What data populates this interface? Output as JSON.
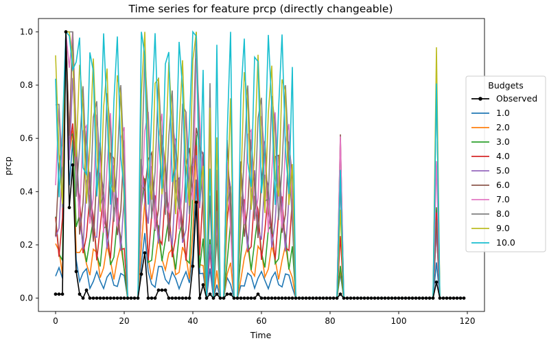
{
  "chart_data": {
    "type": "line",
    "title": "Time series for feature prcp (directly changeable)",
    "xlabel": "Time",
    "ylabel": "prcp",
    "xlim": [
      -5,
      125
    ],
    "ylim": [
      -0.05,
      1.05
    ],
    "x_ticks": [
      0,
      20,
      40,
      60,
      80,
      100,
      120
    ],
    "y_ticks": [
      0.0,
      0.2,
      0.4,
      0.6,
      0.8,
      1.0
    ],
    "grid": false,
    "legend": {
      "title": "Budgets",
      "placement": "right"
    },
    "x": [
      0,
      1,
      2,
      3,
      4,
      5,
      6,
      7,
      8,
      9,
      10,
      11,
      12,
      13,
      14,
      15,
      16,
      17,
      18,
      19,
      20,
      21,
      22,
      23,
      24,
      25,
      26,
      27,
      28,
      29,
      30,
      31,
      32,
      33,
      34,
      35,
      36,
      37,
      38,
      39,
      40,
      41,
      42,
      43,
      44,
      45,
      46,
      47,
      48,
      49,
      50,
      51,
      52,
      53,
      54,
      55,
      56,
      57,
      58,
      59,
      60,
      61,
      62,
      63,
      64,
      65,
      66,
      67,
      68,
      69,
      70,
      71,
      72,
      73,
      74,
      75,
      76,
      77,
      78,
      79,
      80,
      81,
      82,
      83,
      84,
      85,
      86,
      87,
      88,
      89,
      90,
      91,
      92,
      93,
      94,
      95,
      96,
      97,
      98,
      99,
      100,
      101,
      102,
      103,
      104,
      105,
      106,
      107,
      108,
      109,
      110,
      111,
      112,
      113,
      114,
      115,
      116,
      117,
      118,
      119
    ],
    "observed": [
      0.015,
      0.015,
      0.015,
      1.0,
      0.34,
      0.5,
      0.1,
      0.015,
      0.0,
      0.03,
      0.0,
      0.0,
      0.0,
      0.0,
      0.0,
      0.0,
      0.0,
      0.0,
      0.0,
      0.0,
      0.0,
      0.0,
      0.0,
      0.0,
      0.0,
      0.09,
      0.17,
      0.0,
      0.0,
      0.0,
      0.03,
      0.03,
      0.03,
      0.0,
      0.0,
      0.0,
      0.0,
      0.0,
      0.0,
      0.0,
      0.12,
      0.36,
      0.0,
      0.05,
      0.0,
      0.015,
      0.0,
      0.015,
      0.0,
      0.0,
      0.015,
      0.015,
      0.0,
      0.0,
      0.0,
      0.0,
      0.0,
      0.0,
      0.0,
      0.015,
      0.0,
      0.0,
      0.0,
      0.0,
      0.0,
      0.0,
      0.0,
      0.0,
      0.0,
      0.0,
      0.0,
      0.0,
      0.0,
      0.0,
      0.0,
      0.0,
      0.0,
      0.0,
      0.0,
      0.0,
      0.0,
      0.0,
      0.0,
      0.015,
      0.0,
      0.0,
      0.0,
      0.0,
      0.0,
      0.0,
      0.0,
      0.0,
      0.0,
      0.0,
      0.0,
      0.0,
      0.0,
      0.0,
      0.0,
      0.0,
      0.0,
      0.0,
      0.0,
      0.0,
      0.0,
      0.0,
      0.0,
      0.0,
      0.0,
      0.0,
      0.0,
      0.06,
      0.0,
      0.0,
      0.0,
      0.0,
      0.0,
      0.0,
      0.0,
      0.0
    ],
    "series_meta": [
      {
        "name": "1.0",
        "scale": 0.1
      },
      {
        "name": "2.0",
        "scale": 0.2
      },
      {
        "name": "3.0",
        "scale": 0.3
      },
      {
        "name": "4.0",
        "scale": 0.4
      },
      {
        "name": "5.0",
        "scale": 0.5
      },
      {
        "name": "6.0",
        "scale": 0.6
      },
      {
        "name": "7.0",
        "scale": 0.7
      },
      {
        "name": "8.0",
        "scale": 0.8
      },
      {
        "name": "9.0",
        "scale": 0.9
      },
      {
        "name": "10.0",
        "scale": 1.0
      }
    ],
    "colors": {
      "observed": "#000000",
      "series": [
        "#1f77b4",
        "#ff7f0e",
        "#2ca02c",
        "#d62728",
        "#9467bd",
        "#8c564b",
        "#e377c2",
        "#7f7f7f",
        "#bcbd22",
        "#17becf"
      ]
    },
    "legend_entries": [
      "Observed",
      "1.0",
      "2.0",
      "3.0",
      "4.0",
      "5.0",
      "6.0",
      "7.0",
      "8.0",
      "9.0",
      "10.0"
    ]
  }
}
